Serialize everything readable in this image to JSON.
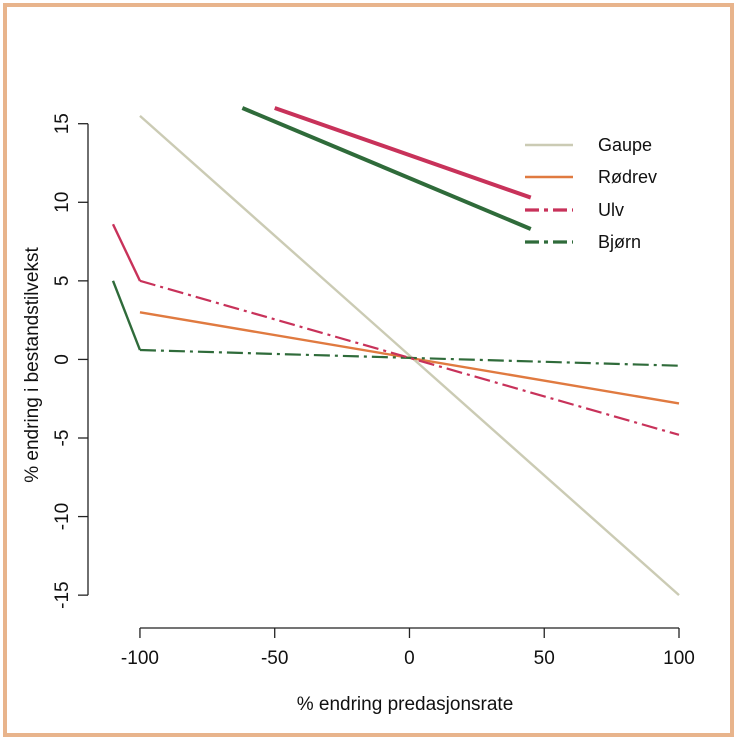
{
  "chart_data": {
    "type": "line",
    "xlabel": "% endring predasjonsrate",
    "ylabel": "% endring i bestandstilvekst",
    "xlim": [
      -110,
      100
    ],
    "ylim": [
      -15.5,
      16
    ],
    "xticks": [
      -100,
      -50,
      0,
      50,
      100
    ],
    "xtick_labels": [
      "-100",
      "-50",
      "0",
      "50",
      "100"
    ],
    "yticks": [
      -15,
      -10,
      -5,
      0,
      5,
      10,
      15
    ],
    "ytick_labels": [
      "-15",
      "-10",
      "-5",
      "0",
      "5",
      "10",
      "15"
    ],
    "legend": {
      "position": "top-right"
    },
    "series": [
      {
        "name": "Gaupe",
        "color": "#cbcbb4",
        "segments": [
          {
            "style": "solid",
            "x": [
              -100,
              100
            ],
            "y": [
              15.5,
              -15
            ]
          }
        ]
      },
      {
        "name": "Rødrev",
        "color": "#e07a40",
        "segments": [
          {
            "style": "solid",
            "x": [
              -100,
              100
            ],
            "y": [
              3.0,
              -2.8
            ]
          }
        ]
      },
      {
        "name": "Ulv",
        "color": "#c8325a",
        "segments": [
          {
            "style": "solid",
            "x": [
              -110,
              -100
            ],
            "y": [
              8.6,
              5.0
            ]
          },
          {
            "style": "dashdot",
            "x": [
              -100,
              100
            ],
            "y": [
              5.0,
              -4.8
            ]
          }
        ]
      },
      {
        "name": "Bjørn",
        "color": "#2f6b3a",
        "segments": [
          {
            "style": "solid",
            "x": [
              -110,
              -100
            ],
            "y": [
              5.0,
              0.6
            ]
          },
          {
            "style": "dashdot",
            "x": [
              -100,
              100
            ],
            "y": [
              0.6,
              -0.4
            ]
          }
        ]
      }
    ],
    "legend_lines": [
      {
        "series": "Ulv",
        "color": "#c8325a",
        "x": [
          -50,
          45
        ],
        "y": [
          16,
          10.3
        ]
      },
      {
        "series": "Bjørn",
        "color": "#2f6b3a",
        "x": [
          -62,
          45
        ],
        "y": [
          16,
          8.3
        ]
      }
    ]
  }
}
